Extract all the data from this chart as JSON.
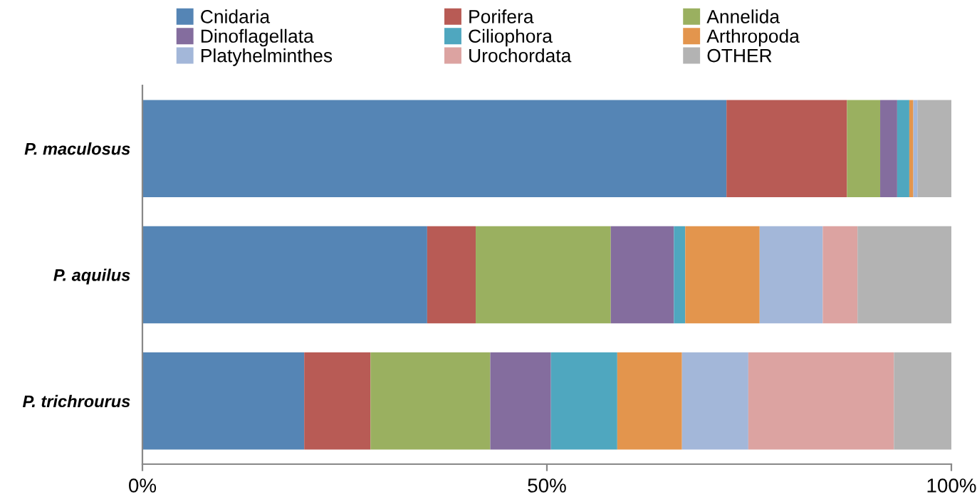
{
  "chart_data": {
    "type": "bar",
    "orientation": "horizontal",
    "stacked": true,
    "legend": "top",
    "grid": false,
    "categories": [
      "P. maculosus",
      "P. aquilus",
      "P. trichrourus"
    ],
    "xlim": [
      0,
      100
    ],
    "xticks": [
      {
        "value": 0,
        "label": "0%"
      },
      {
        "value": 50,
        "label": "50%"
      },
      {
        "value": 100,
        "label": "100%"
      }
    ],
    "series": [
      {
        "name": "Cnidaria",
        "color": "#5585b5",
        "values": [
          72.2,
          35.2,
          20.0
        ]
      },
      {
        "name": "Porifera",
        "color": "#b85b55",
        "values": [
          14.9,
          6.0,
          8.2
        ]
      },
      {
        "name": "Annelida",
        "color": "#9ab060",
        "values": [
          4.1,
          16.7,
          14.8
        ]
      },
      {
        "name": "Dinoflagellata",
        "color": "#846d9e",
        "values": [
          2.1,
          7.8,
          7.5
        ]
      },
      {
        "name": "Ciliophora",
        "color": "#4fa7bf",
        "values": [
          1.5,
          1.4,
          8.2
        ]
      },
      {
        "name": "Arthropoda",
        "color": "#e3954d",
        "values": [
          0.5,
          9.2,
          8.0
        ]
      },
      {
        "name": "Platyhelminthes",
        "color": "#a3b7d9",
        "values": [
          0.5,
          7.8,
          8.2
        ]
      },
      {
        "name": "Urochordata",
        "color": "#dca3a1",
        "values": [
          0,
          4.3,
          18.0
        ]
      },
      {
        "name": "OTHER",
        "color": "#b3b3b3",
        "values": [
          4.2,
          11.6,
          7.1
        ]
      }
    ]
  }
}
